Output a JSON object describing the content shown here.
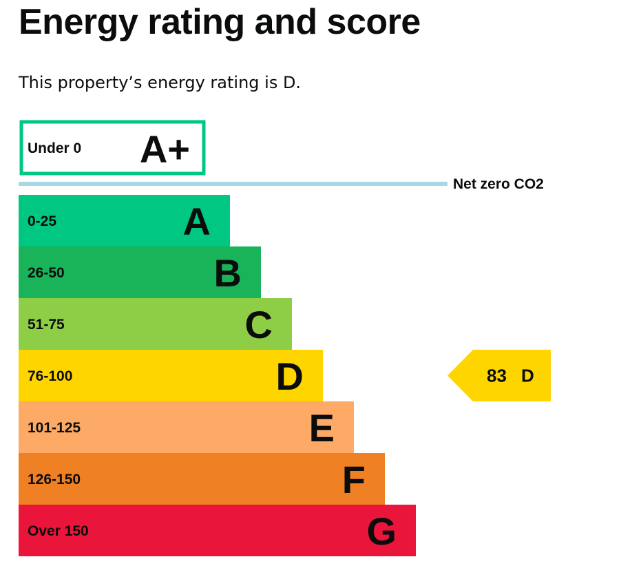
{
  "header": {
    "title": "Energy rating and score",
    "intro": "This property’s energy rating is D."
  },
  "chart_data": {
    "type": "bar",
    "bands": [
      {
        "letter": "A+",
        "range": "Under 0",
        "color": "#00c781",
        "style": "outline"
      },
      {
        "letter": "A",
        "range": "0-25",
        "color": "#00c781"
      },
      {
        "letter": "B",
        "range": "26-50",
        "color": "#19b459"
      },
      {
        "letter": "C",
        "range": "51-75",
        "color": "#8dce46"
      },
      {
        "letter": "D",
        "range": "76-100",
        "color": "#ffd500"
      },
      {
        "letter": "E",
        "range": "101-125",
        "color": "#fcaa65"
      },
      {
        "letter": "F",
        "range": "126-150",
        "color": "#ef8023"
      },
      {
        "letter": "G",
        "range": "Over 150",
        "color": "#e9153b"
      }
    ],
    "net_zero": {
      "label": "Net zero CO2",
      "color": "#a8d8e4"
    },
    "current": {
      "score": "83",
      "rating": "D",
      "color": "#ffd500"
    }
  }
}
